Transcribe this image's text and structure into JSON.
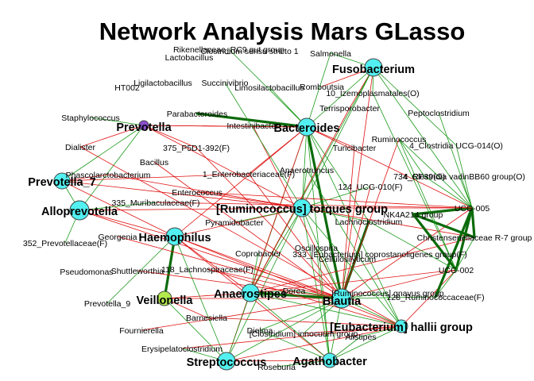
{
  "title": "Network Analysis Mars GLasso",
  "colors": {
    "hub_fill": "#52f0f0",
    "prevotella_fill": "#8a4fd1",
    "veillonella_fill": "#b3ea4e",
    "positive_edge": "#1a9a1a",
    "negative_edge": "#e01010",
    "strong_edge": "#0b6b0b"
  },
  "hubs": [
    {
      "id": "fuso",
      "label": "Fusobacterium",
      "type": "hub"
    },
    {
      "id": "bact",
      "label": "Bacteroides",
      "type": "hub"
    },
    {
      "id": "prevotella",
      "label": "Prevotella",
      "type": "purple"
    },
    {
      "id": "prev7",
      "label": "Prevotella_7",
      "type": "hub"
    },
    {
      "id": "allo",
      "label": "Alloprevotella",
      "type": "hub"
    },
    {
      "id": "rumi",
      "label": "[Ruminococcus] torques group",
      "type": "hub"
    },
    {
      "id": "haem",
      "label": "Haemophilus",
      "type": "hub"
    },
    {
      "id": "veil",
      "label": "Veillonella",
      "type": "green"
    },
    {
      "id": "anae",
      "label": "Anaerostipes",
      "type": "hub"
    },
    {
      "id": "blau",
      "label": "Blautia",
      "type": "hub"
    },
    {
      "id": "euba",
      "label": "[Eubacterium] hallii group",
      "type": "hub"
    },
    {
      "id": "strep",
      "label": "Streptococcus",
      "type": "hub"
    },
    {
      "id": "agat",
      "label": "Agathobacter",
      "type": "hub"
    }
  ],
  "small_labels": [
    {
      "id": "rikenellaceae",
      "label": "Rikenellaceae_RC9 gut group"
    },
    {
      "id": "clostridium_ss",
      "label": "Clostridium sensu stricto 1"
    },
    {
      "id": "lactobacillus",
      "label": "Lactobacillus"
    },
    {
      "id": "salmonella",
      "label": "Salmonella"
    },
    {
      "id": "ht002",
      "label": "HT002"
    },
    {
      "id": "ligilacto",
      "label": "Ligilactobacillus"
    },
    {
      "id": "succinivibrio",
      "label": "Succinivibrio"
    },
    {
      "id": "limosilacto",
      "label": "Limosilactobacillus"
    },
    {
      "id": "romboutsia",
      "label": "Romboutsia"
    },
    {
      "id": "izemo",
      "label": "10_Izemoplasmatales(O)"
    },
    {
      "id": "staph",
      "label": "Staphylococcus"
    },
    {
      "id": "parabact",
      "label": "Parabacteroides"
    },
    {
      "id": "intestini",
      "label": "Intestinibacter"
    },
    {
      "id": "terrispo",
      "label": "Terrisporobacter"
    },
    {
      "id": "peptoclo",
      "label": "Peptoclostridium"
    },
    {
      "id": "rumino",
      "label": "Ruminococcus"
    },
    {
      "id": "dialister",
      "label": "Dialister"
    },
    {
      "id": "p5d1",
      "label": "375_P5D1-392(F)"
    },
    {
      "id": "turici",
      "label": "Turicibacter"
    },
    {
      "id": "ucg014",
      "label": "4_Clostridia UCG-014(O)"
    },
    {
      "id": "bacillus",
      "label": "Bacillus"
    },
    {
      "id": "entero_f",
      "label": "1_Enterobacteriaceae(F)"
    },
    {
      "id": "anaerotrun",
      "label": "Anaerotruncus"
    },
    {
      "id": "vadin",
      "label": "734_Clostridia vadinBB60 group(O)"
    },
    {
      "id": "rf39",
      "label": "4_RF39(O)"
    },
    {
      "id": "phascol",
      "label": "Phascolarctobacterium"
    },
    {
      "id": "ucg010",
      "label": "124_UCG-010(F)"
    },
    {
      "id": "muribac",
      "label": "335_Muribaculaceae(F)"
    },
    {
      "id": "enterococ",
      "label": "Enterococcus"
    },
    {
      "id": "ucg005",
      "label": "UCG-005"
    },
    {
      "id": "nk4a214",
      "label": "NK4A214 group"
    },
    {
      "id": "lachnoclo",
      "label": "Lachnoclostridium"
    },
    {
      "id": "pyramido",
      "label": "Pyramidobacter"
    },
    {
      "id": "georgenia",
      "label": "Georgenia"
    },
    {
      "id": "prevcea",
      "label": "352_Prevotellaceae(F)"
    },
    {
      "id": "christen",
      "label": "Christensenellaceae R-7 group"
    },
    {
      "id": "coproba",
      "label": "Coprobacter"
    },
    {
      "id": "oscillo",
      "label": "Oscillospira"
    },
    {
      "id": "cellulo",
      "label": "Cellulosilyticum"
    },
    {
      "id": "eub_copro",
      "label": "333_[Eubacterium] coprostanoligenes group(F)"
    },
    {
      "id": "lachnosp",
      "label": "118_Lachnospiraceae(F)"
    },
    {
      "id": "ucg002",
      "label": "UCG-002"
    },
    {
      "id": "pseudomon",
      "label": "Pseudomonas"
    },
    {
      "id": "shuttle",
      "label": "Shuttleworthia"
    },
    {
      "id": "dorea",
      "label": "Dorea"
    },
    {
      "id": "rum_gnav",
      "label": "[Ruminococcus] gnavus group"
    },
    {
      "id": "prev9",
      "label": "Prevotella_9"
    },
    {
      "id": "rumcea",
      "label": "128_Ruminococcaceae(F)"
    },
    {
      "id": "barnes",
      "label": "Barnesiella"
    },
    {
      "id": "fournier",
      "label": "Fournierella"
    },
    {
      "id": "dielma",
      "label": "Dielma"
    },
    {
      "id": "clos_inn",
      "label": "[Clostridium] innocuum group"
    },
    {
      "id": "alistipes",
      "label": "Alistipes"
    },
    {
      "id": "erysipel",
      "label": "Erysipelatoclostridium"
    },
    {
      "id": "roseburia",
      "label": "Roseburia"
    }
  ]
}
